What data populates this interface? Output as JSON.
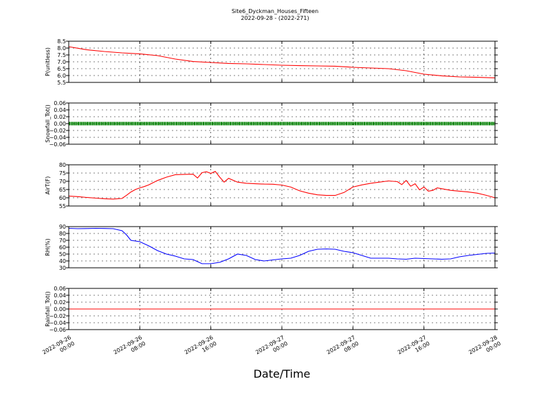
{
  "figure": {
    "title_line1": "Site6_Dyckman_Houses_Fifteen",
    "title_line2": "2022-09-28 - (2022-271)",
    "xlabel": "Date/Time",
    "x_ticks": [
      [
        "2022-09-26",
        "00:00"
      ],
      [
        "2022-09-26",
        "08:00"
      ],
      [
        "2022-09-26",
        "16:00"
      ],
      [
        "2022-09-27",
        "00:00"
      ],
      [
        "2022-09-27",
        "08:00"
      ],
      [
        "2022-09-27",
        "16:00"
      ],
      [
        "2022-09-28",
        "00:00"
      ]
    ]
  },
  "chart_data": [
    {
      "type": "line",
      "ylabel": "P(unitless)",
      "ylim": [
        5.5,
        8.5
      ],
      "yticks": [
        "5.5",
        "6.0",
        "6.5",
        "7.0",
        "7.5",
        "8.0",
        "8.5"
      ],
      "grid": true,
      "color": "#ff0000",
      "x_hours": [
        0,
        2,
        4,
        6,
        8,
        10,
        12,
        14,
        16,
        18,
        20,
        22,
        24,
        26,
        28,
        30,
        32,
        34,
        36,
        38,
        40,
        42,
        44,
        46,
        48
      ],
      "values": [
        8.1,
        7.88,
        7.75,
        7.65,
        7.58,
        7.45,
        7.2,
        7.02,
        6.95,
        6.88,
        6.85,
        6.8,
        6.75,
        6.72,
        6.7,
        6.68,
        6.6,
        6.55,
        6.5,
        6.35,
        6.1,
        5.98,
        5.9,
        5.87,
        5.83
      ]
    },
    {
      "type": "scatter",
      "ylabel": "Snowfall_Tot()",
      "ylim": [
        -0.06,
        0.06
      ],
      "yticks": [
        "−0.06",
        "−0.04",
        "−0.02",
        "0.00",
        "0.02",
        "0.04",
        "0.06"
      ],
      "grid": true,
      "color": "#008000",
      "x_hours": [
        0,
        48
      ],
      "values": [
        0.0,
        0.0
      ]
    },
    {
      "type": "line",
      "ylabel": "AirT(F)",
      "ylim": [
        55,
        80
      ],
      "yticks": [
        "55",
        "60",
        "65",
        "70",
        "75",
        "80"
      ],
      "grid": true,
      "color": "#ff0000",
      "x_hours": [
        0,
        1,
        2,
        3,
        4,
        5,
        6,
        6.5,
        7,
        7.5,
        8,
        8.5,
        9,
        10,
        11,
        12,
        13,
        14,
        14.5,
        15,
        15.5,
        16,
        16.5,
        17,
        17.5,
        18,
        19,
        20,
        21,
        22,
        23,
        24,
        25,
        26,
        27,
        28,
        29,
        30,
        31,
        32,
        33,
        34,
        35,
        36,
        37,
        37.5,
        38,
        38.5,
        39,
        39.5,
        40,
        40.5,
        41,
        41.5,
        42,
        43,
        44,
        45,
        46,
        47,
        48
      ],
      "values": [
        61,
        60.7,
        60.2,
        59.8,
        59.4,
        59.2,
        59.6,
        61.5,
        63.5,
        65,
        66,
        66.8,
        67.8,
        70.5,
        72.5,
        74,
        74.2,
        74.3,
        72,
        75.2,
        75.8,
        74.8,
        76,
        72.5,
        69.5,
        71.8,
        69.5,
        68.8,
        68.5,
        68.3,
        68.2,
        67.7,
        66.5,
        64.2,
        62.8,
        61.8,
        61.4,
        61.4,
        63.2,
        66.5,
        67.8,
        68.8,
        69.5,
        70.2,
        69.8,
        68,
        70.5,
        67,
        68.5,
        64.8,
        66.5,
        64,
        64.5,
        66,
        65.5,
        64.5,
        64,
        63.5,
        62.8,
        61.5,
        60
      ]
    },
    {
      "type": "line",
      "ylabel": "RH(%)",
      "ylim": [
        30,
        90
      ],
      "yticks": [
        "30",
        "40",
        "50",
        "60",
        "70",
        "80",
        "90"
      ],
      "grid": true,
      "color": "#0000ff",
      "x_hours": [
        0,
        1,
        2,
        3,
        4,
        5,
        5.5,
        6,
        6.5,
        7,
        7.5,
        8,
        9,
        10,
        11,
        12,
        13,
        14,
        15,
        16,
        17,
        18,
        19,
        20,
        21,
        22,
        23,
        24,
        25,
        26,
        27,
        28,
        29,
        30,
        31,
        32,
        33,
        34,
        35,
        36,
        37,
        38,
        39,
        40,
        41,
        42,
        43,
        44,
        45,
        46,
        47,
        48
      ],
      "values": [
        87.5,
        87,
        87.2,
        87.5,
        87.3,
        87,
        85.5,
        84,
        78,
        70,
        69,
        68,
        62,
        55,
        50,
        47,
        43,
        42,
        36,
        36,
        38,
        43,
        50,
        48,
        42,
        40,
        41.5,
        43,
        44,
        48,
        54,
        57,
        57.5,
        57,
        54,
        52,
        48,
        44,
        44,
        44,
        43,
        42.5,
        44,
        43.5,
        43,
        42.5,
        43,
        46,
        48,
        49.5,
        51,
        51.5
      ]
    },
    {
      "type": "line",
      "ylabel": "Rainfall_Tot()",
      "ylim": [
        -0.06,
        0.06
      ],
      "yticks": [
        "−0.06",
        "−0.04",
        "−0.02",
        "0.00",
        "0.02",
        "0.04",
        "0.06"
      ],
      "grid": true,
      "color": "#ff0000",
      "x_hours": [
        0,
        48
      ],
      "values": [
        0.0,
        0.0
      ]
    }
  ]
}
